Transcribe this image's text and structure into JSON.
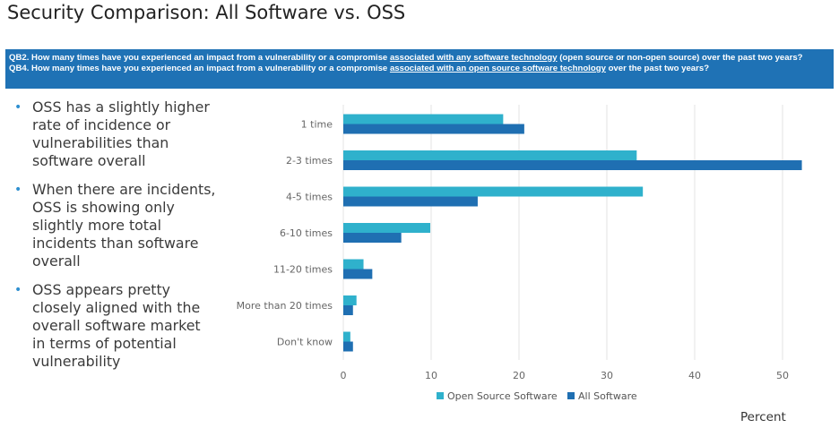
{
  "title": "Security Comparison: All Software vs. OSS",
  "banner": {
    "q1_prefix": "QB2. How many times have you experienced an impact from a vulnerability or a compromise ",
    "q1_link": "associated with any software technology",
    "q1_suffix": " (open source or non-open source) over the past two years?",
    "q2_prefix": "QB4. How many times have you experienced an impact from a vulnerability or a compromise ",
    "q2_link": "associated with an open source software technology",
    "q2_suffix": " over the past two years?"
  },
  "bullets": [
    "OSS has a slightly higher rate of incidence or vulnerabilities than software overall",
    "When there are incidents, OSS is showing only slightly more total incidents than software overall",
    "OSS appears pretty closely aligned with the overall software market in terms of potential vulnerability"
  ],
  "colors": {
    "oss": "#2fb1cc",
    "all": "#1f6fb2",
    "grid": "#e3e3e3",
    "banner": "#1f72b5"
  },
  "chart_data": {
    "type": "bar",
    "orientation": "horizontal",
    "categories": [
      "1 time",
      "2-3 times",
      "4-5 times",
      "6-10 times",
      "11-20 times",
      "More than 20 times",
      "Don't know"
    ],
    "series": [
      {
        "name": "Open Source Software",
        "values": [
          18.2,
          33.4,
          34.1,
          9.9,
          2.3,
          1.5,
          0.8
        ]
      },
      {
        "name": "All Software",
        "values": [
          20.6,
          52.2,
          15.3,
          6.6,
          3.3,
          1.1,
          1.1
        ]
      }
    ],
    "xlim": [
      0,
      55
    ],
    "xticks": [
      0,
      10,
      20,
      30,
      40,
      50
    ],
    "xlabel": "Percent",
    "grid": true,
    "legend": "bottom"
  }
}
